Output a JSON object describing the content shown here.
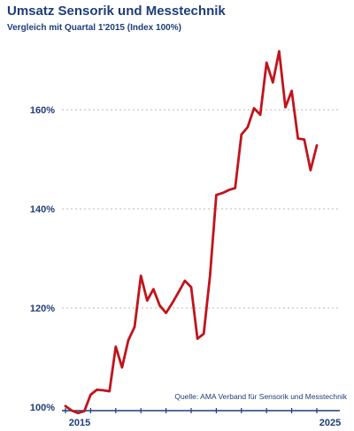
{
  "chart_data": {
    "type": "line",
    "title": "Umsatz Sensorik und Messtechnik",
    "subtitle": "Vergleich mit Quartal 1'2015 (Index 100%)",
    "source": "Quelle: AMA Verband für Sensorik und Messtechnik",
    "xlabel": "",
    "ylabel": "",
    "x_tick_labels": [
      "2015",
      "2025"
    ],
    "y_ticks": [
      100,
      120,
      140,
      160
    ],
    "y_tick_labels": [
      "100%",
      "120%",
      "140%",
      "160%"
    ],
    "ylim": [
      100,
      172
    ],
    "grid": true,
    "line_color": "#c0141b",
    "series": [
      {
        "values": [
          100.2,
          99.3,
          98.8,
          99.2,
          102.5,
          103.5,
          103.4,
          103.2,
          112.2,
          108.0,
          113.5,
          116.2,
          126.5,
          121.5,
          123.8,
          120.5,
          119.0,
          121.0,
          123.2,
          125.5,
          124.2,
          113.8,
          114.8,
          126.5,
          142.8,
          143.2,
          143.8,
          144.2,
          155.0,
          156.5,
          160.3,
          159.0,
          169.5,
          165.5,
          171.8,
          160.5,
          163.8,
          154.2,
          154.0,
          147.8,
          152.8
        ]
      }
    ]
  }
}
